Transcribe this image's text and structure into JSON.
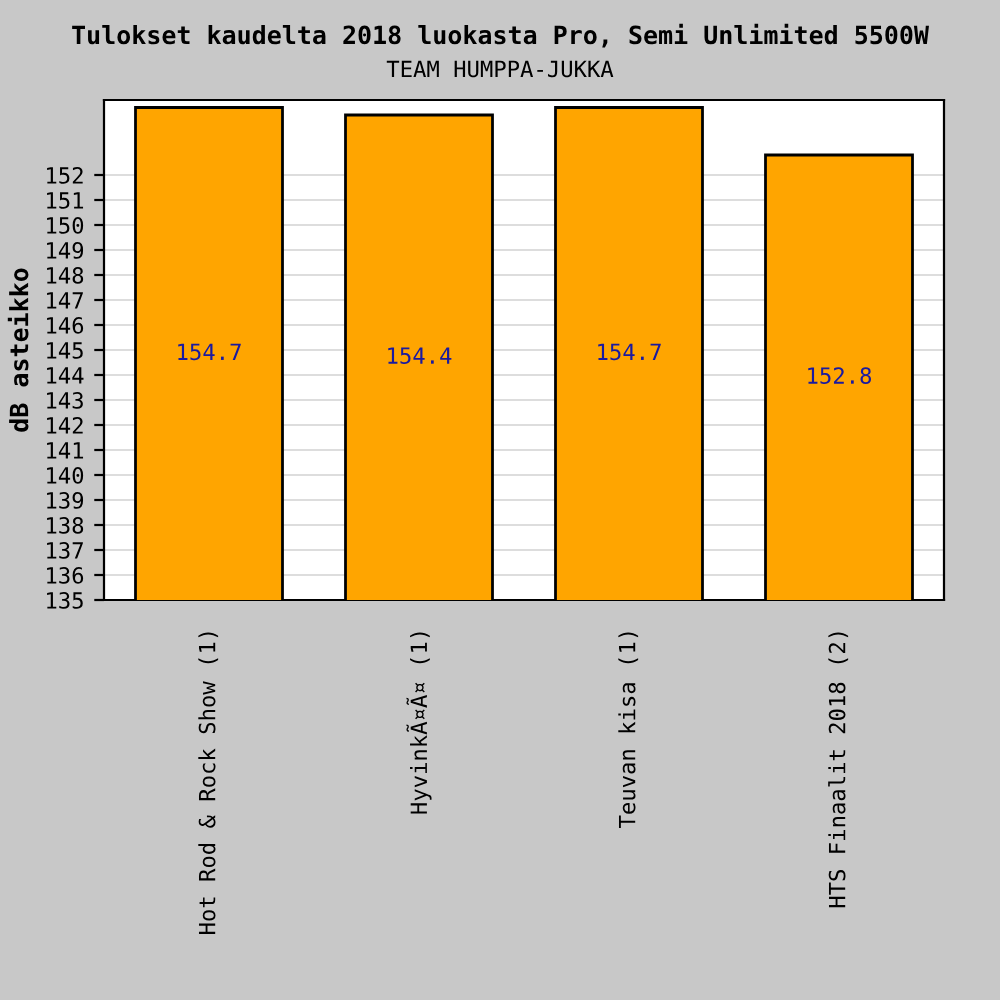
{
  "chart_data": {
    "type": "bar",
    "title": "Tulokset kaudelta 2018 luokasta Pro, Semi Unlimited 5500W",
    "subtitle": "TEAM HUMPPA-JUKKA",
    "ylabel": "dB asteikko",
    "categories": [
      "Hot Rod & Rock Show (1)",
      "HyvinkÃ¤Ã¤ (1)",
      "Teuvan kisa (1)",
      "HTS Finaalit 2018 (2)"
    ],
    "values": [
      154.7,
      154.4,
      154.7,
      152.8
    ],
    "color": "#ffa500",
    "ylim": [
      135,
      155
    ],
    "yticks": [
      135,
      136,
      137,
      138,
      139,
      140,
      141,
      142,
      143,
      144,
      145,
      146,
      147,
      148,
      149,
      150,
      151,
      152
    ],
    "grid": "y",
    "data_labels": true
  }
}
